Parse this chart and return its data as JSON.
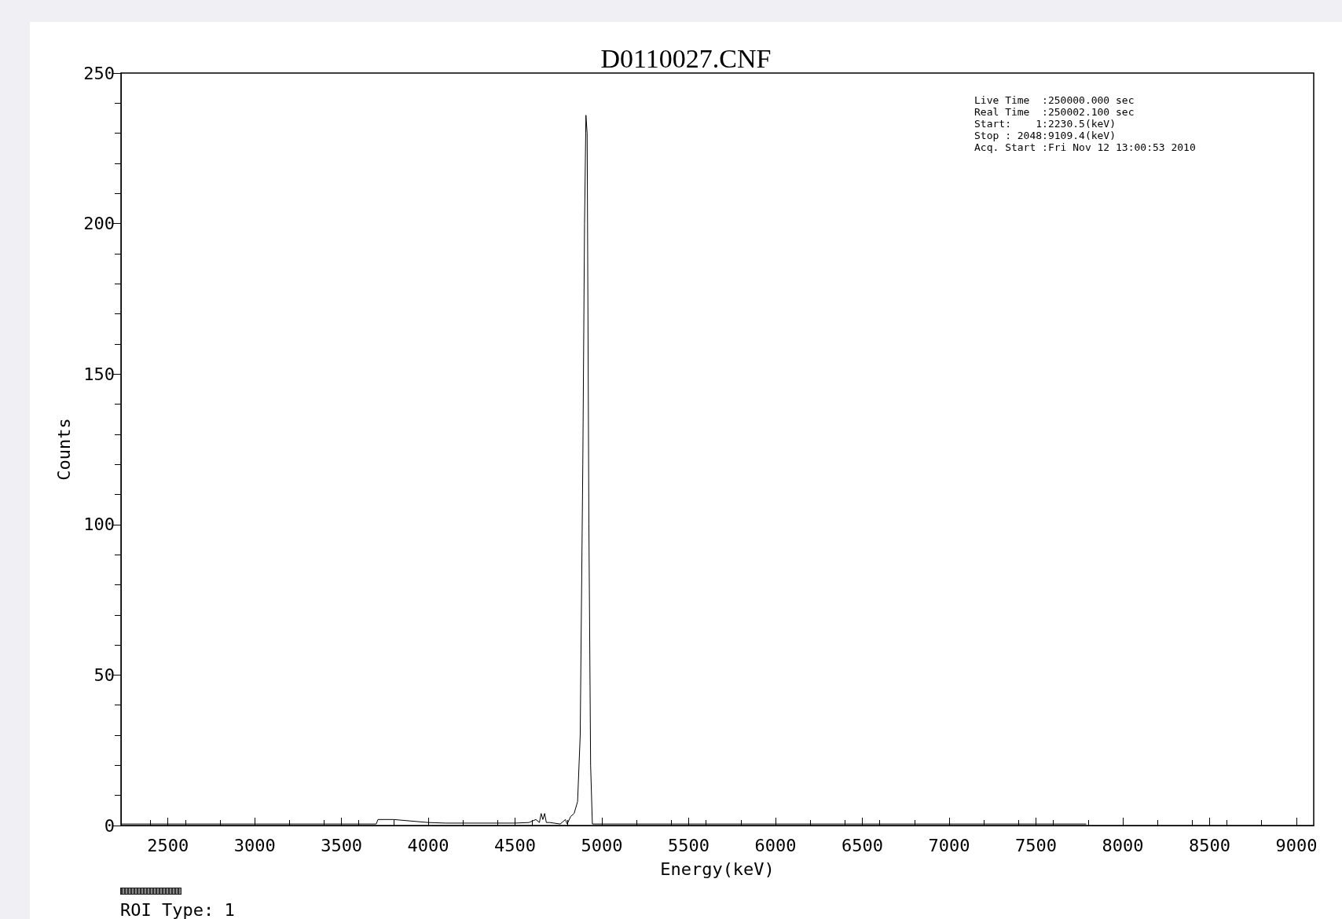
{
  "chart_data": {
    "type": "line",
    "title": "D0110027.CNF",
    "xlabel": "Energy(keV)",
    "ylabel": "Counts",
    "annotations": [
      "Live Time  :250000.000 sec",
      "Real Time  :250002.100 sec",
      "Start:    1:2230.5(keV)",
      "Stop : 2048:9109.4(keV)",
      "Acq. Start :Fri Nov 12 13:00:53 2010",
      "ROI Type: 1"
    ],
    "series": [
      {
        "color": "#000000",
        "x": [
          2230,
          3700,
          3710,
          3800,
          3900,
          4000,
          4100,
          4500,
          4580,
          4620,
          4640,
          4650,
          4660,
          4670,
          4680,
          4700,
          4760,
          4790,
          4800,
          4820,
          4840,
          4860,
          4875,
          4890,
          4900,
          4908,
          4915,
          4925,
          4935,
          4945,
          7790
        ],
        "values": [
          0.5,
          0.5,
          2,
          2,
          1.5,
          1,
          0.8,
          0.8,
          1,
          2,
          1,
          4,
          2,
          4,
          1,
          1,
          0.5,
          2,
          0.5,
          3,
          4,
          8,
          30,
          120,
          200,
          236,
          230,
          100,
          20,
          0.5,
          0.5
        ]
      }
    ],
    "xlim": [
      2230,
      9100
    ],
    "ylim": [
      0,
      250
    ],
    "xticks": [
      2500,
      3000,
      3500,
      4000,
      4500,
      5000,
      5500,
      6000,
      6500,
      7000,
      7500,
      8000,
      8500,
      9000
    ],
    "yticks": [
      0,
      50,
      100,
      150,
      200,
      250
    ],
    "grid": false,
    "marker": "none",
    "line_style": "solid"
  }
}
